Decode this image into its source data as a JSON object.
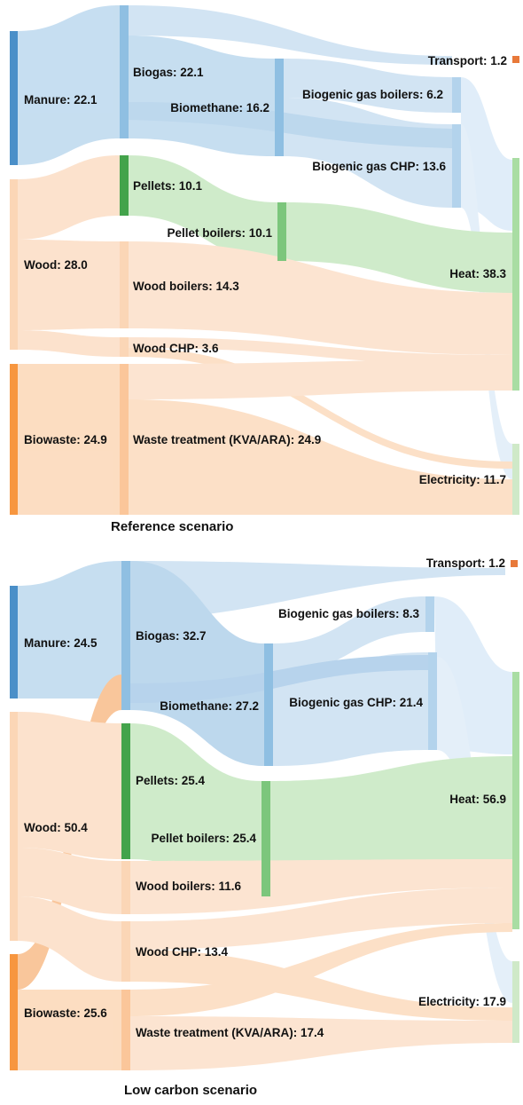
{
  "palette": {
    "manure": "#4a8fc8",
    "biogas_light": "#8fbfe2",
    "wood": "#fbd6b6",
    "biowaste": "#f7963f",
    "pellets": "#43a34b",
    "pellet_boilers": "#7cc67c",
    "heat": "#a9dda3",
    "electricity": "#cfe9c8",
    "transport": "#e8793a",
    "link_blue": "#b3d3ec",
    "link_orange": "#fbd2ad",
    "link_green": "#bfe5b9",
    "link_pale_blue": "#d6e8f7"
  },
  "scenarios": [
    {
      "title": "Reference scenario",
      "nodes": [
        {
          "id": "manure",
          "label": "Manure: 22.1"
        },
        {
          "id": "wood",
          "label": "Wood: 28.0"
        },
        {
          "id": "biowaste",
          "label": "Biowaste: 24.9"
        },
        {
          "id": "biogas",
          "label": "Biogas: 22.1"
        },
        {
          "id": "biomethane",
          "label": "Biomethane: 16.2"
        },
        {
          "id": "pellets",
          "label": "Pellets: 10.1"
        },
        {
          "id": "pellet_boilers",
          "label": "Pellet boilers: 10.1"
        },
        {
          "id": "wood_boilers",
          "label": "Wood boilers: 14.3"
        },
        {
          "id": "wood_chp",
          "label": "Wood CHP: 3.6"
        },
        {
          "id": "waste_treatment",
          "label": "Waste treatment (KVA/ARA): 24.9"
        },
        {
          "id": "biogenic_gas_boilers",
          "label": "Biogenic gas boilers: 6.2"
        },
        {
          "id": "biogenic_gas_chp",
          "label": "Biogenic gas CHP: 13.6"
        },
        {
          "id": "transport",
          "label": "Transport: 1.2"
        },
        {
          "id": "heat",
          "label": "Heat: 38.3"
        },
        {
          "id": "electricity",
          "label": "Electricity: 11.7"
        }
      ]
    },
    {
      "title": "Low carbon scenario",
      "nodes": [
        {
          "id": "manure",
          "label": "Manure: 24.5"
        },
        {
          "id": "wood",
          "label": "Wood: 50.4"
        },
        {
          "id": "biowaste",
          "label": "Biowaste: 25.6"
        },
        {
          "id": "biogas",
          "label": "Biogas: 32.7"
        },
        {
          "id": "biomethane",
          "label": "Biomethane: 27.2"
        },
        {
          "id": "pellets",
          "label": "Pellets: 25.4"
        },
        {
          "id": "pellet_boilers",
          "label": "Pellet boilers: 25.4"
        },
        {
          "id": "wood_boilers",
          "label": "Wood boilers: 11.6"
        },
        {
          "id": "wood_chp",
          "label": "Wood CHP: 13.4"
        },
        {
          "id": "waste_treatment",
          "label": "Waste treatment (KVA/ARA): 17.4"
        },
        {
          "id": "biogenic_gas_boilers",
          "label": "Biogenic gas boilers: 8.3"
        },
        {
          "id": "biogenic_gas_chp",
          "label": "Biogenic gas CHP: 21.4"
        },
        {
          "id": "transport",
          "label": "Transport: 1.2"
        },
        {
          "id": "heat",
          "label": "Heat: 56.9"
        },
        {
          "id": "electricity",
          "label": "Electricity: 17.9"
        }
      ]
    }
  ]
}
